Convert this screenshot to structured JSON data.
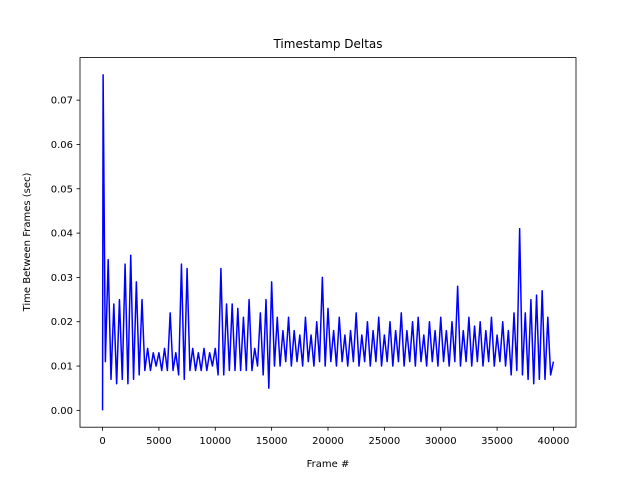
{
  "chart_data": {
    "type": "line",
    "title": "Timestamp Deltas",
    "xlabel": "Frame #",
    "ylabel": "Time Between Frames (sec)",
    "x": [
      0,
      50,
      250,
      500,
      750,
      1000,
      1250,
      1500,
      1750,
      2000,
      2250,
      2500,
      2750,
      3000,
      3250,
      3500,
      3750,
      4000,
      4250,
      4500,
      4750,
      5000,
      5250,
      5500,
      5750,
      6000,
      6250,
      6500,
      6750,
      7000,
      7250,
      7500,
      7750,
      8000,
      8250,
      8500,
      8750,
      9000,
      9250,
      9500,
      9750,
      10000,
      10250,
      10500,
      10750,
      11000,
      11250,
      11500,
      11750,
      12000,
      12250,
      12500,
      12750,
      13000,
      13250,
      13500,
      13750,
      14000,
      14250,
      14500,
      14750,
      15000,
      15250,
      15500,
      15750,
      16000,
      16250,
      16500,
      16750,
      17000,
      17250,
      17500,
      17750,
      18000,
      18250,
      18500,
      18750,
      19000,
      19250,
      19500,
      19750,
      20000,
      20250,
      20500,
      20750,
      21000,
      21250,
      21500,
      21750,
      22000,
      22250,
      22500,
      22750,
      23000,
      23250,
      23500,
      23750,
      24000,
      24250,
      24500,
      24750,
      25000,
      25250,
      25500,
      25750,
      26000,
      26250,
      26500,
      26750,
      27000,
      27250,
      27500,
      27750,
      28000,
      28250,
      28500,
      28750,
      29000,
      29250,
      29500,
      29750,
      30000,
      30250,
      30500,
      30750,
      31000,
      31250,
      31500,
      31750,
      32000,
      32250,
      32500,
      32750,
      33000,
      33250,
      33500,
      33750,
      34000,
      34250,
      34500,
      34750,
      35000,
      35250,
      35500,
      35750,
      36000,
      36250,
      36500,
      36750,
      37000,
      37250,
      37500,
      37750,
      38000,
      38250,
      38500,
      38750,
      39000,
      39250,
      39500,
      39750,
      40000
    ],
    "series": [
      {
        "color": "#0000ff",
        "values": [
          0.0,
          0.0757,
          0.011,
          0.034,
          0.007,
          0.024,
          0.006,
          0.025,
          0.007,
          0.033,
          0.006,
          0.035,
          0.007,
          0.029,
          0.008,
          0.025,
          0.009,
          0.014,
          0.009,
          0.013,
          0.01,
          0.013,
          0.009,
          0.014,
          0.009,
          0.022,
          0.009,
          0.013,
          0.008,
          0.033,
          0.007,
          0.032,
          0.009,
          0.014,
          0.009,
          0.013,
          0.009,
          0.014,
          0.009,
          0.013,
          0.01,
          0.014,
          0.008,
          0.032,
          0.008,
          0.024,
          0.009,
          0.024,
          0.009,
          0.023,
          0.009,
          0.021,
          0.009,
          0.025,
          0.009,
          0.014,
          0.01,
          0.022,
          0.008,
          0.025,
          0.005,
          0.029,
          0.01,
          0.021,
          0.01,
          0.018,
          0.011,
          0.021,
          0.01,
          0.018,
          0.011,
          0.017,
          0.01,
          0.021,
          0.011,
          0.017,
          0.01,
          0.02,
          0.011,
          0.03,
          0.01,
          0.023,
          0.011,
          0.018,
          0.01,
          0.021,
          0.011,
          0.017,
          0.01,
          0.018,
          0.011,
          0.022,
          0.01,
          0.017,
          0.011,
          0.02,
          0.01,
          0.018,
          0.011,
          0.021,
          0.01,
          0.017,
          0.011,
          0.02,
          0.01,
          0.018,
          0.011,
          0.022,
          0.01,
          0.018,
          0.011,
          0.02,
          0.01,
          0.021,
          0.011,
          0.017,
          0.01,
          0.02,
          0.011,
          0.018,
          0.01,
          0.021,
          0.011,
          0.018,
          0.01,
          0.02,
          0.011,
          0.028,
          0.01,
          0.018,
          0.011,
          0.021,
          0.01,
          0.019,
          0.011,
          0.02,
          0.01,
          0.018,
          0.011,
          0.021,
          0.01,
          0.017,
          0.011,
          0.02,
          0.01,
          0.018,
          0.008,
          0.022,
          0.009,
          0.041,
          0.008,
          0.022,
          0.007,
          0.025,
          0.006,
          0.026,
          0.007,
          0.027,
          0.007,
          0.021,
          0.008,
          0.011
        ]
      }
    ],
    "xlim": [
      -2000,
      42000
    ],
    "xticks": [
      0,
      5000,
      10000,
      15000,
      20000,
      25000,
      30000,
      35000,
      40000
    ],
    "ylim": [
      -0.0038,
      0.0796
    ],
    "yticks": [
      {
        "value": 0,
        "label": "0.00"
      },
      0.01,
      0.02,
      0.03,
      0.04,
      0.05,
      0.06,
      0.07
    ],
    "grid": false
  }
}
